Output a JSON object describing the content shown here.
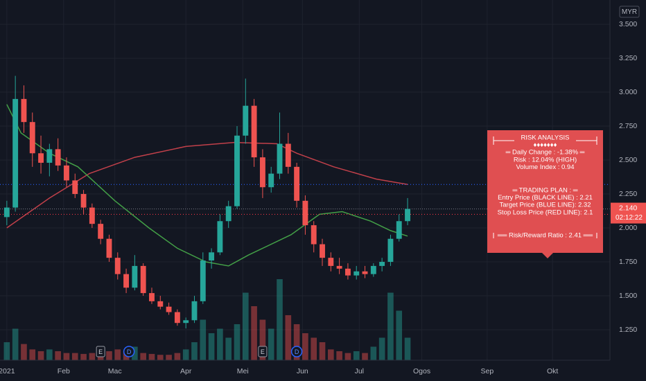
{
  "chart_data": {
    "type": "candlestick",
    "currency": "MYR",
    "xlim": [
      -2.4,
      212.2
    ],
    "xticks": [
      {
        "value": 0,
        "label": "2021"
      },
      {
        "value": 20,
        "label": "Feb"
      },
      {
        "value": 38,
        "label": "Mac"
      },
      {
        "value": 63,
        "label": "Apr"
      },
      {
        "value": 83,
        "label": "Mei"
      },
      {
        "value": 104,
        "label": "Jun"
      },
      {
        "value": 124,
        "label": "Jul"
      },
      {
        "value": 146,
        "label": "Ogos"
      },
      {
        "value": 169,
        "label": "Sep"
      },
      {
        "value": 192,
        "label": "Okt"
      }
    ],
    "ylim": [
      1.0255,
      3.679
    ],
    "yticks": [
      {
        "value": 1.25,
        "label": "1.250"
      },
      {
        "value": 1.5,
        "label": "1.500"
      },
      {
        "value": 1.75,
        "label": "1.750"
      },
      {
        "value": 2,
        "label": "2.000"
      },
      {
        "value": 2.25,
        "label": "2.250"
      },
      {
        "value": 2.5,
        "label": "2.500"
      },
      {
        "value": 2.75,
        "label": "2.750"
      },
      {
        "value": 3,
        "label": "3.000"
      },
      {
        "value": 3.25,
        "label": "3.250"
      },
      {
        "value": 3.5,
        "label": "3.500"
      }
    ],
    "grid": true,
    "up_color": "#26a69a",
    "down_color": "#ef5350",
    "x": [
      0,
      3,
      6,
      9,
      12,
      15,
      18,
      21,
      24,
      27,
      30,
      33,
      36,
      39,
      42,
      45,
      48,
      51,
      54,
      57,
      60,
      63,
      66,
      69,
      72,
      75,
      78,
      81,
      84,
      87,
      90,
      93,
      96,
      99,
      102,
      105,
      108,
      111,
      114,
      117,
      120,
      123,
      126,
      129,
      132,
      135,
      138,
      141
    ],
    "open": [
      2.08,
      2.15,
      2.95,
      2.78,
      2.55,
      2.48,
      2.58,
      2.46,
      2.35,
      2.25,
      2.15,
      2.03,
      1.92,
      1.78,
      1.66,
      1.56,
      1.72,
      1.52,
      1.46,
      1.42,
      1.38,
      1.3,
      1.32,
      1.46,
      1.76,
      1.82,
      2.05,
      2.16,
      2.68,
      2.9,
      2.52,
      2.3,
      2.4,
      2.62,
      2.45,
      2.2,
      2.02,
      1.88,
      1.78,
      1.72,
      1.7,
      1.65,
      1.68,
      1.66,
      1.72,
      1.75,
      1.92,
      2.05
    ],
    "high": [
      2.2,
      3.12,
      3.05,
      2.85,
      2.68,
      2.62,
      2.66,
      2.52,
      2.4,
      2.28,
      2.18,
      2.06,
      1.95,
      1.82,
      1.7,
      1.8,
      1.74,
      1.56,
      1.5,
      1.45,
      1.4,
      1.34,
      1.5,
      1.82,
      1.85,
      2.1,
      2.2,
      2.75,
      3.1,
      2.95,
      2.58,
      2.45,
      2.85,
      2.7,
      2.48,
      2.24,
      2.05,
      1.92,
      1.82,
      1.78,
      1.74,
      1.72,
      1.72,
      1.74,
      1.78,
      1.95,
      2.1,
      2.22
    ],
    "low": [
      2.02,
      2.12,
      2.7,
      2.45,
      2.4,
      2.38,
      2.42,
      2.3,
      2.22,
      2.1,
      2.0,
      1.88,
      1.75,
      1.62,
      1.52,
      1.54,
      1.5,
      1.44,
      1.4,
      1.36,
      1.28,
      1.26,
      1.3,
      1.44,
      1.7,
      1.8,
      2.0,
      2.14,
      2.62,
      2.45,
      2.22,
      2.26,
      2.36,
      2.4,
      2.15,
      1.95,
      1.82,
      1.72,
      1.68,
      1.66,
      1.62,
      1.62,
      1.63,
      1.64,
      1.68,
      1.72,
      1.9,
      2.02
    ],
    "close": [
      2.15,
      2.95,
      2.78,
      2.55,
      2.48,
      2.58,
      2.46,
      2.35,
      2.25,
      2.15,
      2.03,
      1.92,
      1.78,
      1.66,
      1.56,
      1.72,
      1.52,
      1.46,
      1.42,
      1.38,
      1.3,
      1.32,
      1.46,
      1.76,
      1.82,
      2.05,
      2.16,
      2.68,
      2.9,
      2.52,
      2.3,
      2.4,
      2.62,
      2.45,
      2.2,
      2.02,
      1.88,
      1.78,
      1.72,
      1.7,
      1.65,
      1.68,
      1.66,
      1.72,
      1.75,
      1.92,
      2.05,
      2.14
    ],
    "vlim": [
      0,
      100
    ],
    "volume": [
      20,
      35,
      18,
      12,
      10,
      12,
      10,
      8,
      8,
      7,
      8,
      9,
      10,
      12,
      10,
      15,
      8,
      7,
      6,
      6,
      8,
      12,
      20,
      45,
      30,
      35,
      25,
      40,
      75,
      60,
      45,
      35,
      90,
      50,
      40,
      30,
      25,
      20,
      12,
      10,
      8,
      10,
      8,
      15,
      25,
      75,
      55,
      25
    ],
    "moving_averages": [
      {
        "color": "#c2404a",
        "x": [
          0,
          15,
          29,
          45,
          63,
          80,
          95,
          102,
          115,
          130,
          141
        ],
        "values": [
          2.0,
          2.22,
          2.4,
          2.52,
          2.6,
          2.63,
          2.62,
          2.55,
          2.45,
          2.36,
          2.32
        ]
      },
      {
        "color": "#43a047",
        "x": [
          0,
          5,
          15,
          25,
          38,
          50,
          60,
          70,
          78,
          85,
          100,
          110,
          118,
          128,
          135,
          141
        ],
        "values": [
          2.91,
          2.7,
          2.55,
          2.45,
          2.2,
          2.0,
          1.85,
          1.75,
          1.72,
          1.8,
          1.95,
          2.1,
          2.12,
          2.05,
          1.98,
          1.94
        ]
      }
    ],
    "hlines": [
      {
        "value": 2.32,
        "color": "#2962ff"
      },
      {
        "value": 2.1,
        "color": "#f23645"
      }
    ],
    "last_price": {
      "value": 2.14,
      "label": "2.140"
    },
    "countdown": "02:12:22",
    "events": [
      {
        "label": "E",
        "x": 33
      },
      {
        "label": "D",
        "x": 43
      },
      {
        "label": "E",
        "x": 90
      },
      {
        "label": "D",
        "x": 102
      }
    ],
    "annotation": {
      "blocks": [
        [
          "RISK ANALYSIS",
          "♦♦♦♦♦♦♦",
          "═ Daily Change : -1.38% ═",
          "Risk : 12.04% (HIGH)",
          "Volume Index : 0.94"
        ],
        [
          "═ TRADING PLAN : ═",
          "Entry Price (BLACK LINE) : 2.21",
          "Target Price (BLUE LINE): 2.32",
          "Stop Loss Price (RED LINE): 2.1"
        ],
        [
          "══ Risk/Reward Ratio : 2.41 ══"
        ]
      ]
    }
  }
}
